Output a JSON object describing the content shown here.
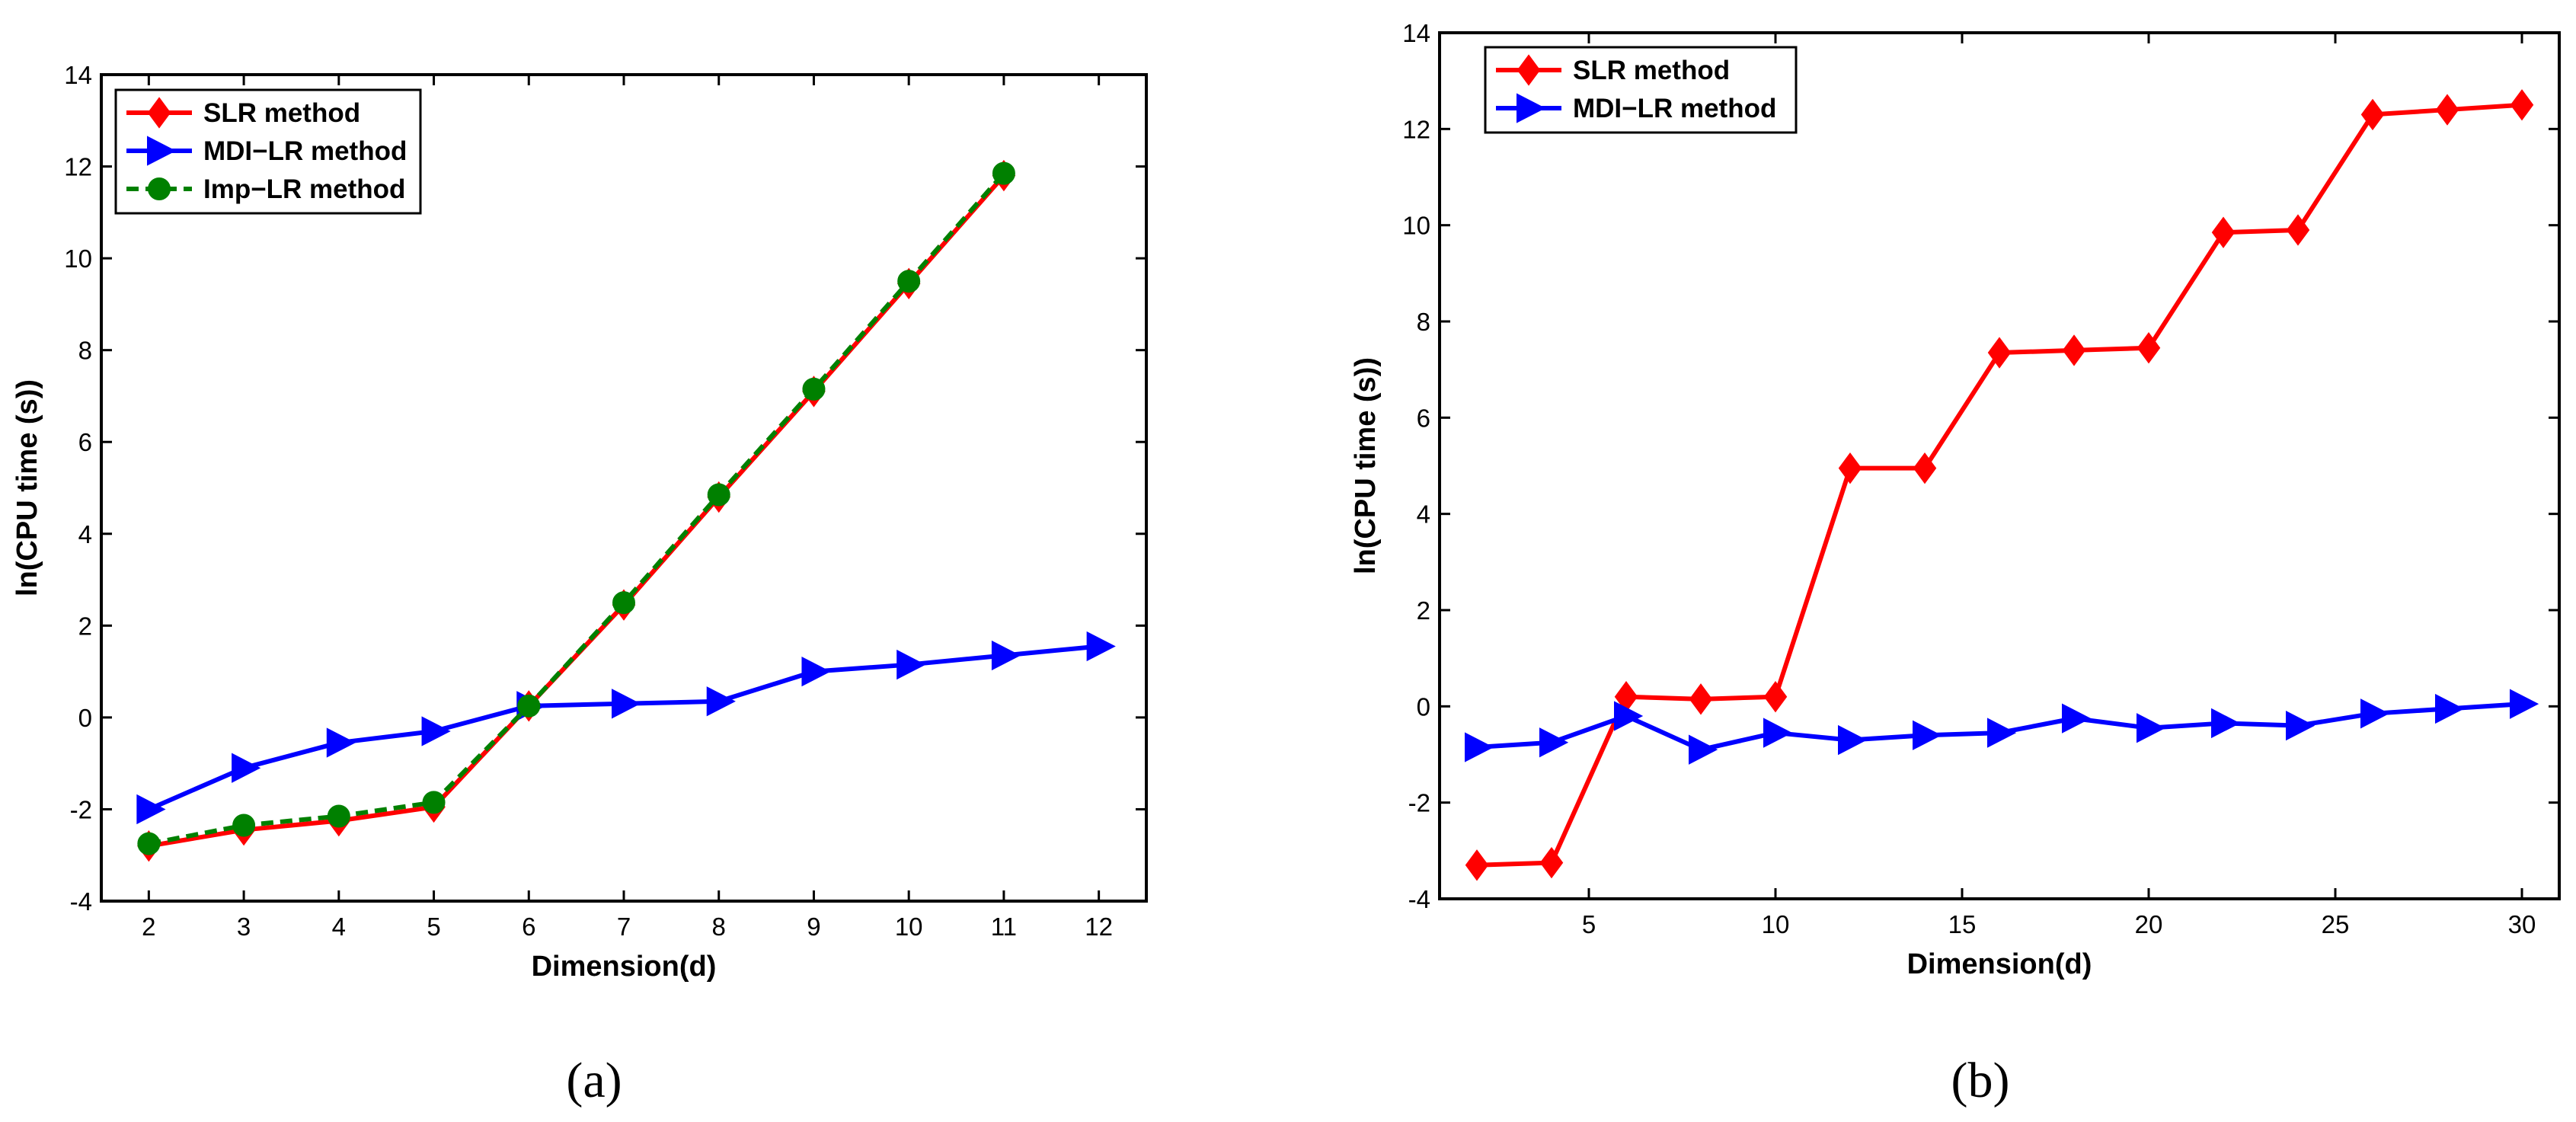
{
  "chart_data": [
    {
      "type": "line",
      "panel_caption": "(a)",
      "xlabel": "Dimension(d)",
      "ylabel": "ln(CPU time (s))",
      "xlim": [
        1.5,
        12.5
      ],
      "ylim": [
        -4,
        14
      ],
      "xticks": [
        2,
        3,
        4,
        5,
        6,
        7,
        8,
        9,
        10,
        11,
        12
      ],
      "yticks": [
        -4,
        -2,
        0,
        2,
        4,
        6,
        8,
        10,
        12,
        14
      ],
      "legend_position": "top-left",
      "series": [
        {
          "name": "SLR method",
          "color": "#ff0000",
          "marker": "diamond",
          "dashed": false,
          "x": [
            2,
            3,
            4,
            5,
            6,
            7,
            8,
            9,
            10,
            11
          ],
          "y": [
            -2.8,
            -2.45,
            -2.25,
            -1.95,
            0.25,
            2.45,
            4.8,
            7.1,
            9.45,
            11.8
          ]
        },
        {
          "name": "MDI−LR method",
          "color": "#0000ff",
          "marker": "triangle-right",
          "dashed": false,
          "x": [
            2,
            3,
            4,
            5,
            6,
            7,
            8,
            9,
            10,
            11,
            12
          ],
          "y": [
            -2.0,
            -1.1,
            -0.55,
            -0.3,
            0.25,
            0.3,
            0.35,
            1.0,
            1.15,
            1.35,
            1.55
          ]
        },
        {
          "name": "Imp−LR method",
          "color": "#008000",
          "marker": "circle",
          "dashed": true,
          "x": [
            2,
            3,
            4,
            5,
            6,
            7,
            8,
            9,
            10,
            11
          ],
          "y": [
            -2.75,
            -2.35,
            -2.15,
            -1.85,
            0.25,
            2.5,
            4.85,
            7.15,
            9.5,
            11.85
          ]
        }
      ]
    },
    {
      "type": "line",
      "panel_caption": "(b)",
      "xlabel": "Dimension(d)",
      "ylabel": "ln(CPU time (s))",
      "xlim": [
        1,
        31
      ],
      "ylim": [
        -4,
        14
      ],
      "xticks": [
        5,
        10,
        15,
        20,
        25,
        30
      ],
      "yticks": [
        -4,
        -2,
        0,
        2,
        4,
        6,
        8,
        10,
        12,
        14
      ],
      "legend_position": "top-left",
      "series": [
        {
          "name": "SLR method",
          "color": "#ff0000",
          "marker": "diamond",
          "dashed": false,
          "x": [
            2,
            4,
            6,
            8,
            10,
            12,
            14,
            16,
            18,
            20,
            22,
            24,
            26,
            28,
            30
          ],
          "y": [
            -3.3,
            -3.25,
            0.2,
            0.15,
            0.2,
            4.95,
            4.95,
            7.35,
            7.4,
            7.45,
            9.85,
            9.9,
            12.3,
            12.4,
            12.5
          ]
        },
        {
          "name": "MDI−LR method",
          "color": "#0000ff",
          "marker": "triangle-right",
          "dashed": false,
          "x": [
            2,
            4,
            6,
            8,
            10,
            12,
            14,
            16,
            18,
            20,
            22,
            24,
            26,
            28,
            30
          ],
          "y": [
            -0.85,
            -0.75,
            -0.2,
            -0.9,
            -0.55,
            -0.7,
            -0.6,
            -0.55,
            -0.25,
            -0.45,
            -0.35,
            -0.4,
            -0.15,
            -0.05,
            0.05
          ]
        }
      ]
    }
  ]
}
